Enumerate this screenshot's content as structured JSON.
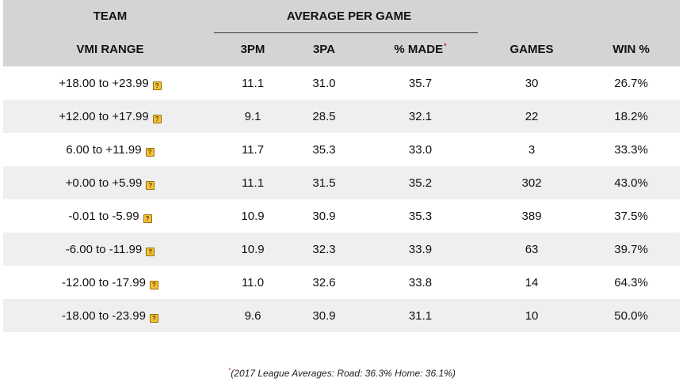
{
  "header": {
    "team": "TEAM",
    "average_per_game": "AVERAGE PER GAME",
    "vmi_range": "VMI RANGE",
    "col_3pm": "3PM",
    "col_3pa": "3PA",
    "col_pct_made": "% MADE",
    "col_games": "GAMES",
    "col_win_pct": "WIN %",
    "asterisk": "*"
  },
  "rows": [
    {
      "range": "+18.00 to +23.99",
      "pm": "11.1",
      "pa": "31.0",
      "pct": "35.7",
      "games": "30",
      "win": "26.7%"
    },
    {
      "range": "+12.00 to +17.99",
      "pm": "9.1",
      "pa": "28.5",
      "pct": "32.1",
      "games": "22",
      "win": "18.2%"
    },
    {
      "range": "6.00 to +11.99",
      "pm": "11.7",
      "pa": "35.3",
      "pct": "33.0",
      "games": "3",
      "win": "33.3%"
    },
    {
      "range": "+0.00 to +5.99",
      "pm": "11.1",
      "pa": "31.5",
      "pct": "35.2",
      "games": "302",
      "win": "43.0%"
    },
    {
      "range": "-0.01 to -5.99",
      "pm": "10.9",
      "pa": "30.9",
      "pct": "35.3",
      "games": "389",
      "win": "37.5%"
    },
    {
      "range": "-6.00 to -11.99",
      "pm": "10.9",
      "pa": "32.3",
      "pct": "33.9",
      "games": "63",
      "win": "39.7%"
    },
    {
      "range": "-12.00 to -17.99",
      "pm": "11.0",
      "pa": "32.6",
      "pct": "33.8",
      "games": "14",
      "win": "64.3%"
    },
    {
      "range": "-18.00 to -23.99",
      "pm": "9.6",
      "pa": "30.9",
      "pct": "31.1",
      "games": "10",
      "win": "50.0%"
    }
  ],
  "help_icon_glyph": "?",
  "footnote": {
    "asterisk": "*",
    "text": "(2017 League Averages: Road: 36.3%  Home: 36.1%)"
  }
}
